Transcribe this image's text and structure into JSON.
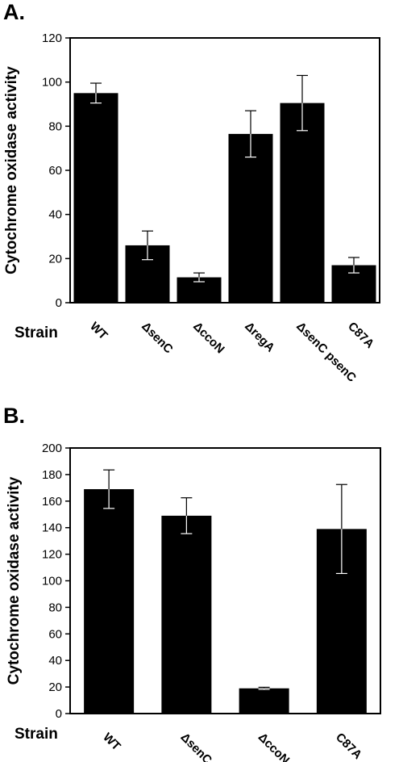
{
  "panels": [
    {
      "letter": "A.",
      "strain_label": "Strain"
    },
    {
      "letter": "B.",
      "strain_label": "Strain"
    }
  ],
  "chart_data": [
    {
      "type": "bar",
      "title": "",
      "ylabel": "Cytochrome oxidase activity",
      "xlabel": "Strain",
      "ylim": [
        0,
        120
      ],
      "yticks": [
        0,
        20,
        40,
        60,
        80,
        100,
        120
      ],
      "categories": [
        "WT",
        "ΔsenC",
        "ΔccoN",
        "ΔregA",
        "ΔsenC psenC",
        "C87A"
      ],
      "values": [
        95,
        26,
        11.5,
        76.5,
        90.5,
        17
      ],
      "errors": [
        4.5,
        6.5,
        2,
        10.5,
        12.5,
        3.5
      ],
      "bar_color": "#000000",
      "grid": false
    },
    {
      "type": "bar",
      "title": "",
      "ylabel": "Cytochrome oxidase activity",
      "xlabel": "Strain",
      "ylim": [
        0,
        200
      ],
      "yticks": [
        0,
        20,
        40,
        60,
        80,
        100,
        120,
        140,
        160,
        180,
        200
      ],
      "categories": [
        "WT",
        "ΔsenC",
        "ΔccoN",
        "C87A"
      ],
      "values": [
        169,
        149,
        19,
        139
      ],
      "errors": [
        14.5,
        13.5,
        0.8,
        33.5
      ],
      "bar_color": "#000000",
      "grid": false
    }
  ]
}
